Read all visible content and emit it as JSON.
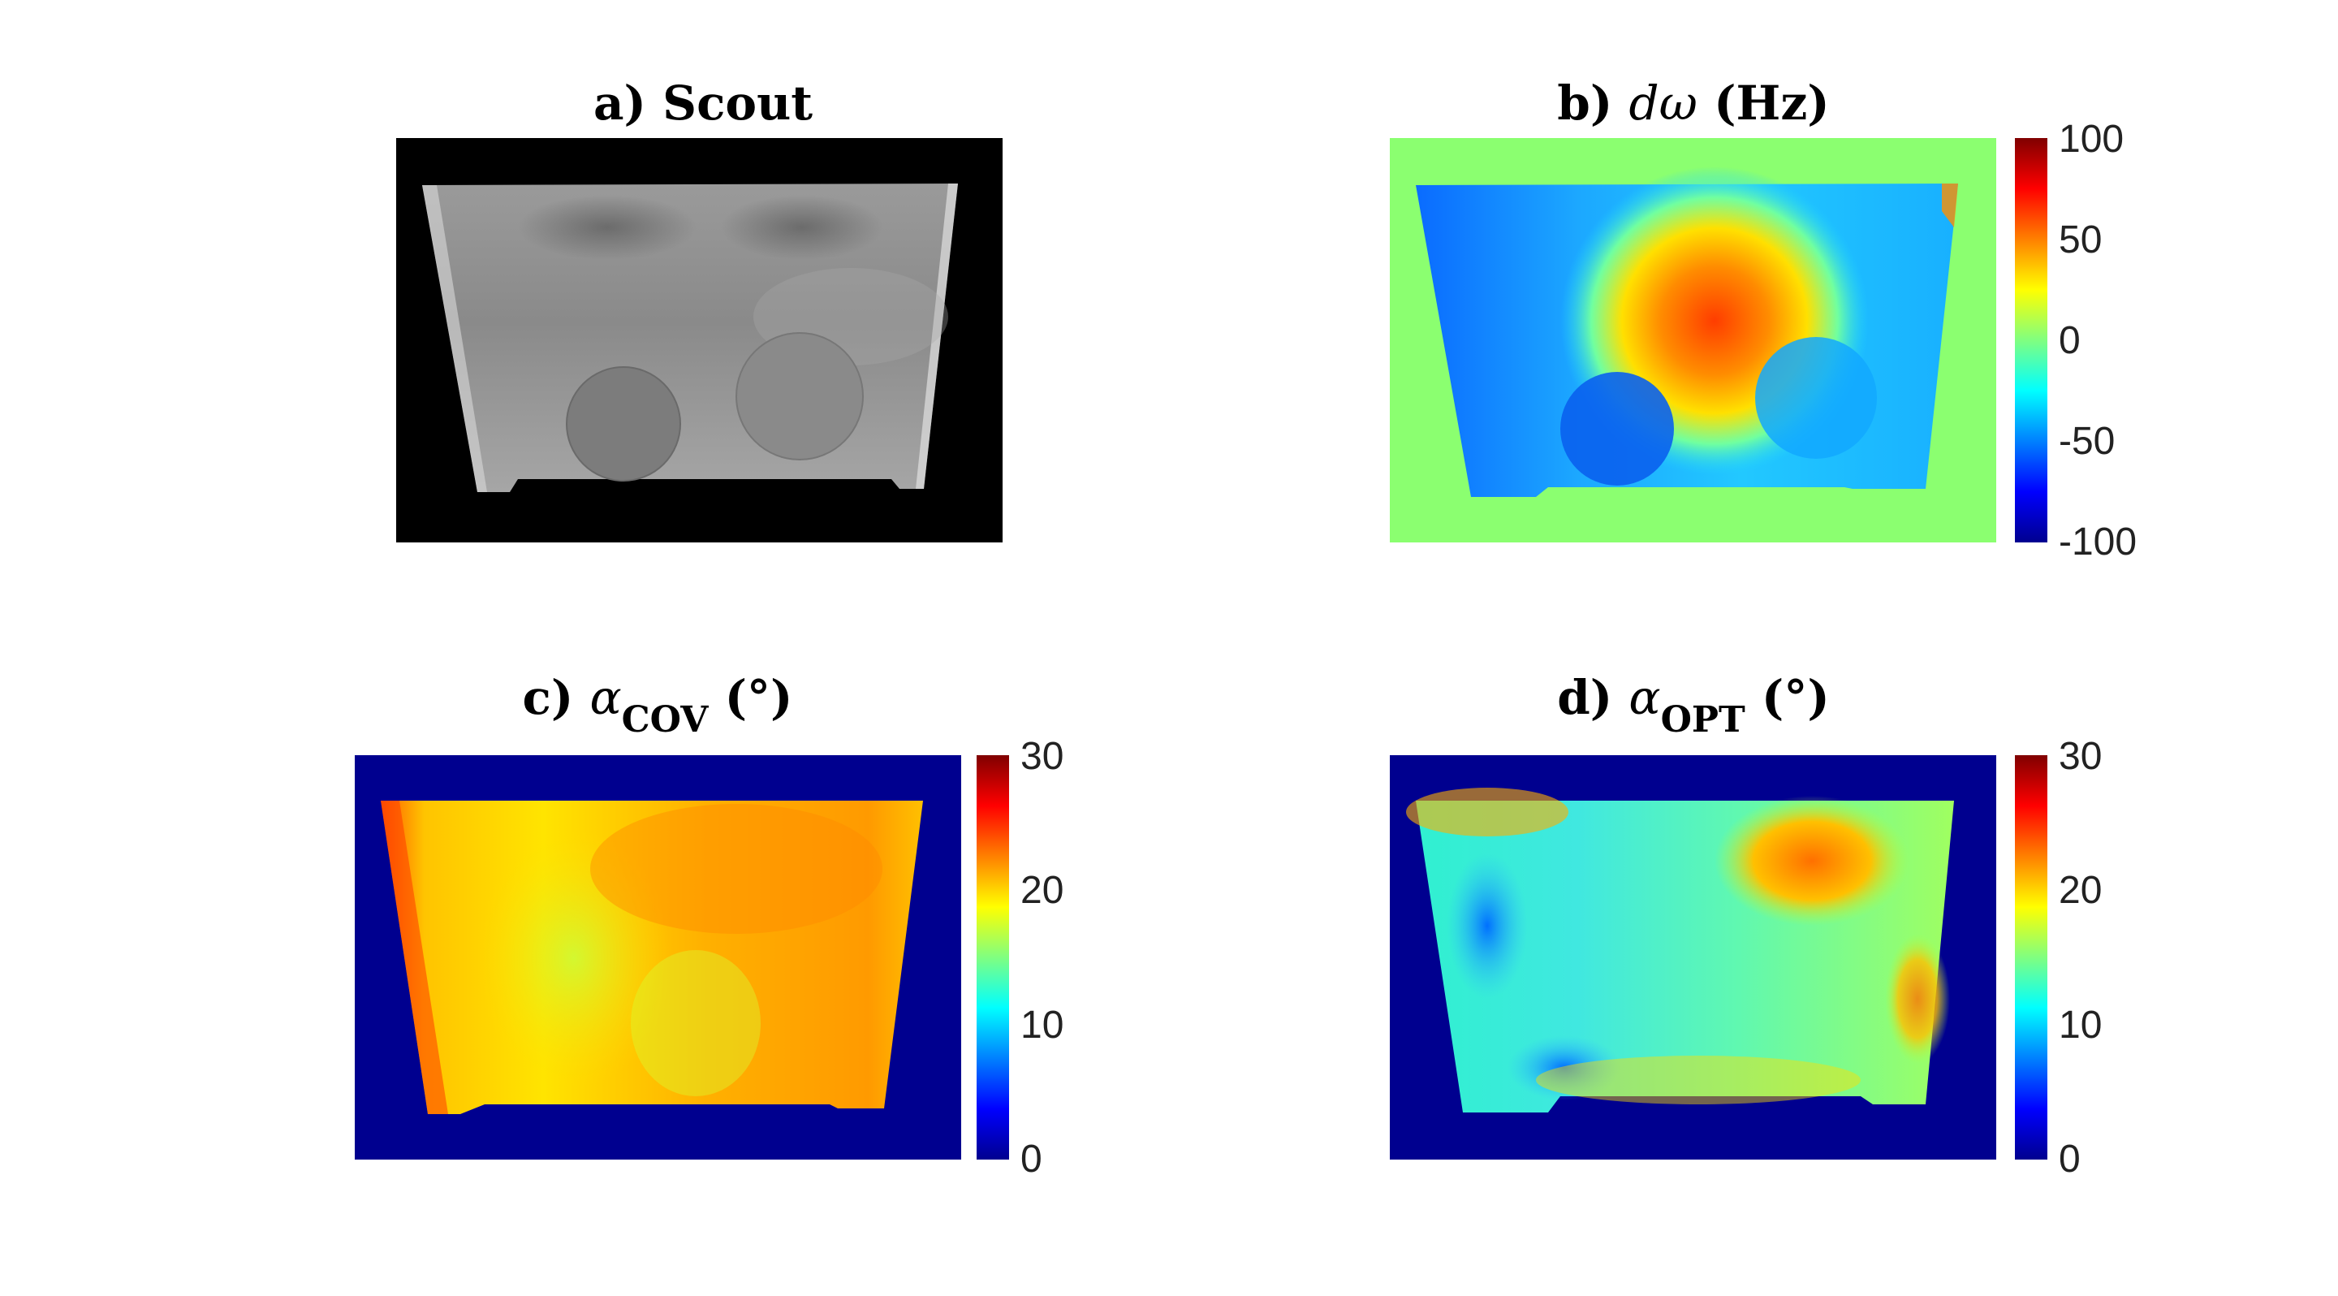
{
  "colors": {
    "background": "#ffffff",
    "jet_dark_blue": "#00008f",
    "jet_green": "#8bff70",
    "black": "#000000"
  },
  "panels": {
    "a": {
      "prefix": "a) ",
      "label": "Scout"
    },
    "b": {
      "prefix": "b)  ",
      "symbol": "dω",
      "unit": " (Hz)"
    },
    "c": {
      "prefix": "c) ",
      "symbol": "α",
      "subscript": "COV",
      "unit": " (°)"
    },
    "d": {
      "prefix": "d) ",
      "symbol": "α",
      "subscript": "OPT",
      "unit": " (°)"
    }
  },
  "chart_data": [
    {
      "type": "heatmap",
      "title": "a) Scout",
      "colormap": "gray",
      "colorbar": false
    },
    {
      "type": "heatmap",
      "title": "b) dω (Hz)",
      "colormap": "jet",
      "clim": [
        -100,
        100
      ],
      "colorbar_ticks": [
        "100",
        "50",
        "0",
        "-50",
        "-100"
      ]
    },
    {
      "type": "heatmap",
      "title": "c) α_COV (°)",
      "colormap": "jet",
      "clim": [
        0,
        30
      ],
      "colorbar_ticks": [
        "30",
        "20",
        "10",
        "0"
      ]
    },
    {
      "type": "heatmap",
      "title": "d) α_OPT (°)",
      "colormap": "jet",
      "clim": [
        0,
        30
      ],
      "colorbar_ticks": [
        "30",
        "20",
        "10",
        "0"
      ]
    }
  ]
}
